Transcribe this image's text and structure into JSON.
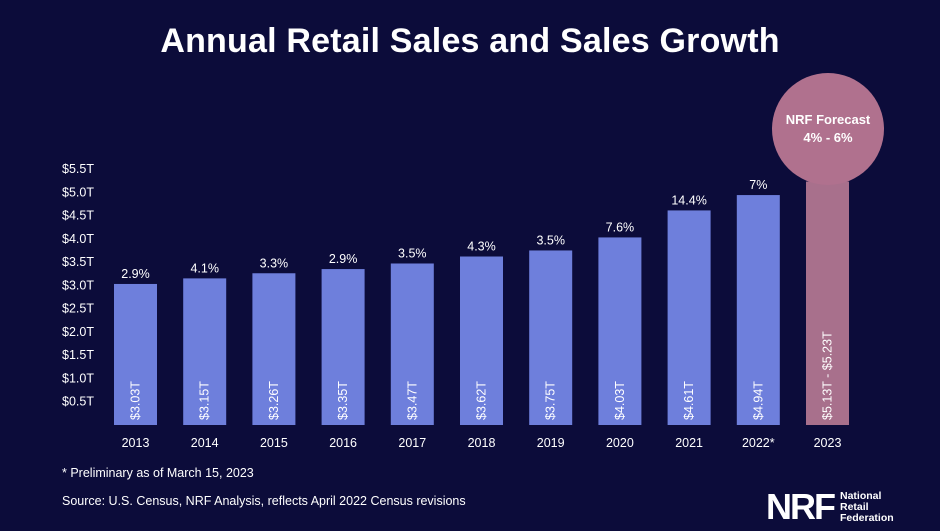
{
  "page": {
    "title": "Annual Retail Sales and Sales Growth",
    "forecast_badge": {
      "line1": "NRF Forecast",
      "line2": "4% - 6%"
    },
    "footnote": "* Preliminary as of March 15, 2023",
    "source": "Source: U.S. Census, NRF Analysis, reflects April 2022 Census revisions",
    "logo": {
      "mark": "NRF",
      "line1": "National",
      "line2": "Retail",
      "line3": "Federation"
    }
  },
  "colors": {
    "background": "#0c0c3a",
    "bar": "#6e7fdc",
    "forecast_bar": "#a8708c",
    "forecast_badge": "#b0718e",
    "text": "#ffffff"
  },
  "chart_data": {
    "type": "bar",
    "title": "Annual Retail Sales and Sales Growth",
    "categories": [
      "2013",
      "2014",
      "2015",
      "2016",
      "2017",
      "2018",
      "2019",
      "2020",
      "2021",
      "2022*",
      "2023"
    ],
    "series": [
      {
        "values": [
          3.03,
          3.15,
          3.26,
          3.35,
          3.47,
          3.62,
          3.75,
          4.03,
          4.61,
          4.94,
          5.23
        ],
        "bar_labels": [
          "$3.03T",
          "$3.15T",
          "$3.26T",
          "$3.35T",
          "$3.47T",
          "$3.62T",
          "$3.75T",
          "$4.03T",
          "$4.61T",
          "$4.94T",
          "$5.13T - $5.23T"
        ],
        "growth_labels": [
          "2.9%",
          "4.1%",
          "3.3%",
          "2.9%",
          "3.5%",
          "4.3%",
          "3.5%",
          "7.6%",
          "14.4%",
          "7%",
          ""
        ]
      }
    ],
    "highlight_index": 10,
    "yticks": [
      0.5,
      1.0,
      1.5,
      2.0,
      2.5,
      3.0,
      3.5,
      4.0,
      4.5,
      5.0,
      5.5
    ],
    "ytick_labels": [
      "$0.5T",
      "$1.0T",
      "$1.5T",
      "$2.0T",
      "$2.5T",
      "$3.0T",
      "$3.5T",
      "$4.0T",
      "$4.5T",
      "$5.0T",
      "$5.5T"
    ],
    "ylim": [
      0,
      5.5
    ],
    "grid": false,
    "legend": "none"
  }
}
